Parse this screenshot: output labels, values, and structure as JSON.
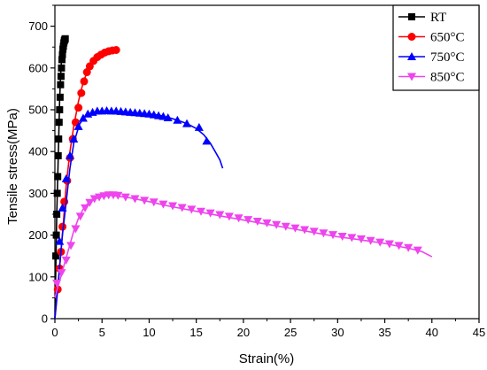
{
  "chart_data": {
    "type": "line",
    "title": "",
    "xlabel": "Strain(%)",
    "ylabel": "Tensile stress(MPa)",
    "xlim": [
      0,
      45
    ],
    "ylim": [
      0,
      750
    ],
    "xticks": [
      "0",
      "5",
      "10",
      "15",
      "20",
      "25",
      "30",
      "35",
      "40",
      "45"
    ],
    "yticks": [
      "0",
      "100",
      "200",
      "300",
      "400",
      "500",
      "600",
      "700"
    ],
    "grid": false,
    "legend_position": "top-right",
    "series": [
      {
        "name": "RT",
        "color": "#000000",
        "marker": "square",
        "line": [
          [
            0,
            0
          ],
          [
            0.05,
            60
          ],
          [
            0.1,
            130
          ],
          [
            0.15,
            190
          ],
          [
            0.2,
            250
          ],
          [
            0.3,
            340
          ],
          [
            0.4,
            430
          ],
          [
            0.5,
            520
          ],
          [
            0.6,
            580
          ],
          [
            0.7,
            620
          ],
          [
            0.8,
            645
          ],
          [
            0.9,
            660
          ],
          [
            1.0,
            668
          ],
          [
            1.1,
            670
          ]
        ],
        "points": [
          [
            0.1,
            150
          ],
          [
            0.15,
            200
          ],
          [
            0.2,
            250
          ],
          [
            0.25,
            300
          ],
          [
            0.3,
            340
          ],
          [
            0.35,
            390
          ],
          [
            0.4,
            430
          ],
          [
            0.45,
            470
          ],
          [
            0.5,
            500
          ],
          [
            0.55,
            530
          ],
          [
            0.6,
            560
          ],
          [
            0.65,
            580
          ],
          [
            0.7,
            600
          ],
          [
            0.75,
            620
          ],
          [
            0.8,
            632
          ],
          [
            0.85,
            645
          ],
          [
            0.9,
            652
          ],
          [
            0.95,
            660
          ],
          [
            1.0,
            665
          ],
          [
            1.05,
            668
          ],
          [
            1.1,
            670
          ]
        ]
      },
      {
        "name": "650°C",
        "color": "#ff0000",
        "marker": "circle",
        "line": [
          [
            0,
            0
          ],
          [
            0.3,
            70
          ],
          [
            0.6,
            150
          ],
          [
            0.9,
            230
          ],
          [
            1.2,
            320
          ],
          [
            1.6,
            400
          ],
          [
            2.0,
            460
          ],
          [
            2.5,
            520
          ],
          [
            3.0,
            565
          ],
          [
            3.5,
            595
          ],
          [
            4.0,
            615
          ],
          [
            4.5,
            628
          ],
          [
            5.0,
            635
          ],
          [
            5.5,
            640
          ],
          [
            6.0,
            642
          ],
          [
            6.5,
            643
          ]
        ],
        "points": [
          [
            0.3,
            70
          ],
          [
            0.5,
            120
          ],
          [
            0.65,
            160
          ],
          [
            0.8,
            220
          ],
          [
            1.0,
            280
          ],
          [
            1.3,
            330
          ],
          [
            1.6,
            385
          ],
          [
            1.9,
            430
          ],
          [
            2.2,
            470
          ],
          [
            2.5,
            505
          ],
          [
            2.8,
            540
          ],
          [
            3.1,
            568
          ],
          [
            3.4,
            590
          ],
          [
            3.7,
            604
          ],
          [
            4.1,
            617
          ],
          [
            4.5,
            626
          ],
          [
            4.9,
            632
          ],
          [
            5.3,
            637
          ],
          [
            5.7,
            640
          ],
          [
            6.1,
            642
          ],
          [
            6.5,
            643
          ]
        ]
      },
      {
        "name": "750°C",
        "color": "#0000ff",
        "marker": "triangle-up",
        "line": [
          [
            0,
            0
          ],
          [
            0.4,
            100
          ],
          [
            0.8,
            200
          ],
          [
            1.2,
            280
          ],
          [
            1.6,
            360
          ],
          [
            2.0,
            420
          ],
          [
            2.6,
            465
          ],
          [
            3.2,
            485
          ],
          [
            4.0,
            493
          ],
          [
            5.0,
            497
          ],
          [
            6.0,
            497
          ],
          [
            7.0,
            496
          ],
          [
            8.0,
            494
          ],
          [
            9.0,
            492
          ],
          [
            10.0,
            490
          ],
          [
            11.0,
            487
          ],
          [
            12.0,
            482
          ],
          [
            13.0,
            475
          ],
          [
            14.0,
            467
          ],
          [
            15.0,
            455
          ],
          [
            15.8,
            440
          ],
          [
            16.5,
            420
          ],
          [
            17.0,
            400
          ],
          [
            17.5,
            380
          ],
          [
            17.8,
            360
          ]
        ],
        "points": [
          [
            0.5,
            185
          ],
          [
            0.8,
            265
          ],
          [
            1.2,
            335
          ],
          [
            1.6,
            390
          ],
          [
            2.0,
            430
          ],
          [
            2.5,
            460
          ],
          [
            3.0,
            480
          ],
          [
            3.5,
            490
          ],
          [
            4.0,
            494
          ],
          [
            4.5,
            497
          ],
          [
            5.0,
            497
          ],
          [
            5.5,
            498
          ],
          [
            6.0,
            497
          ],
          [
            6.5,
            497
          ],
          [
            7.0,
            496
          ],
          [
            7.5,
            495
          ],
          [
            8.0,
            494
          ],
          [
            8.5,
            493
          ],
          [
            9.0,
            492
          ],
          [
            9.5,
            491
          ],
          [
            10.0,
            490
          ],
          [
            10.5,
            488
          ],
          [
            11.0,
            486
          ],
          [
            11.5,
            484
          ],
          [
            12.0,
            481
          ],
          [
            13.0,
            475
          ],
          [
            14.0,
            467
          ],
          [
            15.3,
            458
          ],
          [
            16.1,
            425
          ]
        ]
      },
      {
        "name": "850°C",
        "color": "#ee44ee",
        "marker": "triangle-down",
        "line": [
          [
            0,
            50
          ],
          [
            0.5,
            90
          ],
          [
            1.0,
            130
          ],
          [
            1.5,
            170
          ],
          [
            2.0,
            210
          ],
          [
            2.5,
            240
          ],
          [
            3.0,
            262
          ],
          [
            3.5,
            276
          ],
          [
            4.0,
            285
          ],
          [
            5.0,
            292
          ],
          [
            6.0,
            295
          ],
          [
            7.0,
            292
          ],
          [
            8.0,
            289
          ],
          [
            10.0,
            280
          ],
          [
            12.0,
            270
          ],
          [
            15.0,
            257
          ],
          [
            18.0,
            244
          ],
          [
            20.0,
            236
          ],
          [
            22.0,
            228
          ],
          [
            25.0,
            216
          ],
          [
            28.0,
            204
          ],
          [
            30.0,
            196
          ],
          [
            32.0,
            190
          ],
          [
            35.0,
            180
          ],
          [
            38.0,
            166
          ],
          [
            39.0,
            160
          ],
          [
            40.0,
            148
          ]
        ],
        "points": [
          [
            0.2,
            85
          ],
          [
            0.7,
            110
          ],
          [
            1.2,
            140
          ],
          [
            1.7,
            175
          ],
          [
            2.2,
            215
          ],
          [
            2.7,
            245
          ],
          [
            3.2,
            265
          ],
          [
            3.7,
            278
          ],
          [
            4.2,
            287
          ],
          [
            4.7,
            291
          ],
          [
            5.2,
            294
          ],
          [
            5.7,
            296
          ],
          [
            6.2,
            296
          ],
          [
            6.7,
            295
          ],
          [
            7.5,
            291
          ],
          [
            8.5,
            287
          ],
          [
            9.5,
            283
          ],
          [
            10.5,
            279
          ],
          [
            11.5,
            274
          ],
          [
            12.5,
            270
          ],
          [
            13.5,
            266
          ],
          [
            14.5,
            262
          ],
          [
            15.5,
            257
          ],
          [
            16.5,
            253
          ],
          [
            17.5,
            249
          ],
          [
            18.5,
            245
          ],
          [
            19.5,
            241
          ],
          [
            20.5,
            237
          ],
          [
            21.5,
            233
          ],
          [
            22.5,
            229
          ],
          [
            23.5,
            225
          ],
          [
            24.5,
            221
          ],
          [
            25.5,
            217
          ],
          [
            26.5,
            213
          ],
          [
            27.5,
            209
          ],
          [
            28.5,
            205
          ],
          [
            29.5,
            201
          ],
          [
            30.5,
            197
          ],
          [
            31.5,
            194
          ],
          [
            32.5,
            191
          ],
          [
            33.5,
            187
          ],
          [
            34.5,
            183
          ],
          [
            35.5,
            179
          ],
          [
            36.5,
            175
          ],
          [
            37.5,
            170
          ],
          [
            38.5,
            164
          ]
        ]
      }
    ]
  }
}
